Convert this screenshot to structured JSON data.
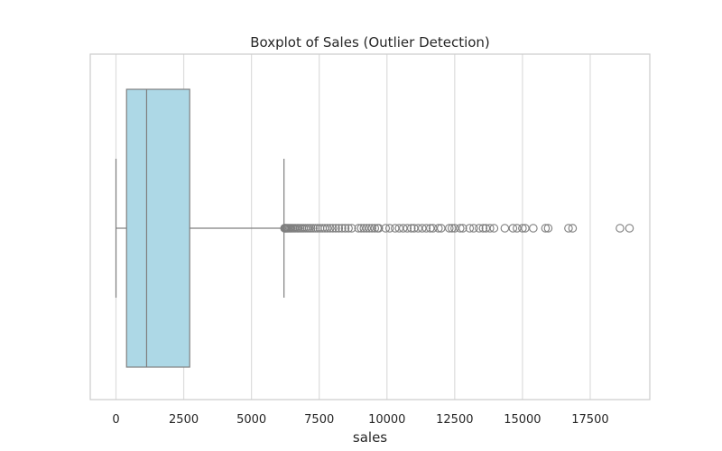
{
  "chart_data": {
    "type": "boxplot",
    "title": "Boxplot of Sales (Outlier Detection)",
    "xlabel": "sales",
    "ylabel": "",
    "orientation": "horizontal",
    "xlim": [
      -950,
      19700
    ],
    "x_ticks": [
      0,
      2500,
      5000,
      7500,
      10000,
      12500,
      15000,
      17500
    ],
    "x_tick_labels": [
      "0",
      "2500",
      "5000",
      "7500",
      "10000",
      "12500",
      "15000",
      "17500"
    ],
    "grid": "vertical",
    "box": {
      "min": 0,
      "q1": 390,
      "median": 1130,
      "q3": 2720,
      "max": 6200,
      "fill": "#add8e6",
      "edge": "#7f7f7f"
    },
    "outliers": [
      6220,
      6240,
      6260,
      6290,
      6320,
      6360,
      6400,
      6440,
      6480,
      6530,
      6580,
      6630,
      6690,
      6740,
      6800,
      6860,
      6920,
      6990,
      7060,
      7130,
      7200,
      7280,
      7360,
      7440,
      7530,
      7620,
      7710,
      7800,
      7900,
      8000,
      8110,
      8220,
      8340,
      8460,
      8580,
      8700,
      8950,
      9050,
      9150,
      9250,
      9350,
      9450,
      9550,
      9650,
      9700,
      9950,
      10100,
      10300,
      10450,
      10600,
      10750,
      10900,
      11000,
      11150,
      11300,
      11450,
      11600,
      11700,
      11900,
      12000,
      12300,
      12400,
      12500,
      12700,
      12800,
      13050,
      13200,
      13400,
      13550,
      13650,
      13800,
      13950,
      14350,
      14650,
      14800,
      15000,
      15100,
      15400,
      15850,
      15950,
      16700,
      16850,
      18600,
      18950
    ]
  }
}
